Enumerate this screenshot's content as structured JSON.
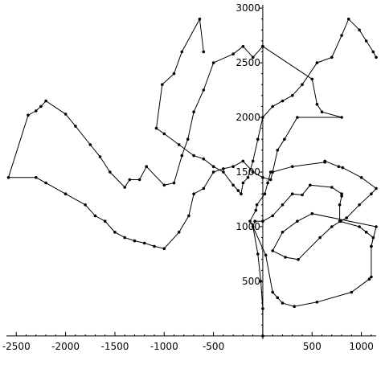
{
  "chart_data": {
    "type": "line",
    "title": "",
    "xlabel": "",
    "ylabel": "",
    "xlim": [
      -2600,
      1150
    ],
    "ylim": [
      -30,
      3030
    ],
    "x_ticks": [
      -2500,
      -2000,
      -1500,
      -1000,
      -500,
      500,
      1000
    ],
    "x_tick_labels": [
      "-2500",
      "-2000",
      "-1500",
      "-1000",
      "-500",
      "500",
      "1000"
    ],
    "y_ticks": [
      500,
      1000,
      1500,
      2000,
      2500,
      3000
    ],
    "y_tick_labels": [
      "500",
      "1000",
      "1500",
      "2000",
      "2500",
      "3000"
    ],
    "minor_ticks": true,
    "grid": false,
    "legend": "none",
    "series": [
      {
        "points": [
          [
            0,
            0
          ],
          [
            0,
            250
          ],
          [
            -20,
            500
          ],
          [
            -50,
            750
          ],
          [
            -100,
            1000
          ],
          [
            -80,
            1050
          ],
          [
            0,
            1050
          ],
          [
            100,
            1100
          ],
          [
            200,
            1200
          ],
          [
            300,
            1300
          ],
          [
            400,
            1290
          ],
          [
            480,
            1380
          ],
          [
            700,
            1360
          ],
          [
            800,
            1300
          ],
          [
            800,
            1280
          ],
          [
            780,
            1200
          ],
          [
            780,
            1050
          ],
          [
            980,
            1000
          ],
          [
            1050,
            950
          ],
          [
            1120,
            900
          ],
          [
            1100,
            820
          ],
          [
            1100,
            540
          ],
          [
            1080,
            520
          ],
          [
            900,
            400
          ],
          [
            550,
            310
          ],
          [
            320,
            270
          ],
          [
            200,
            300
          ],
          [
            150,
            350
          ],
          [
            100,
            400
          ],
          [
            30,
            740
          ],
          [
            -100,
            1000
          ],
          [
            -130,
            1050
          ],
          [
            -70,
            1150
          ],
          [
            -60,
            1200
          ],
          [
            20,
            1300
          ],
          [
            50,
            1400
          ],
          [
            80,
            1500
          ],
          [
            100,
            1500
          ],
          [
            300,
            1550
          ],
          [
            630,
            1590
          ],
          [
            630,
            1600
          ],
          [
            770,
            1550
          ],
          [
            810,
            1540
          ],
          [
            1000,
            1450
          ],
          [
            1150,
            1350
          ],
          [
            1100,
            1300
          ],
          [
            980,
            1200
          ],
          [
            850,
            1080
          ],
          [
            790,
            1050
          ],
          [
            700,
            1000
          ],
          [
            580,
            900
          ],
          [
            360,
            700
          ],
          [
            230,
            720
          ],
          [
            100,
            780
          ],
          [
            200,
            950
          ],
          [
            350,
            1050
          ],
          [
            500,
            1120
          ],
          [
            1150,
            1000
          ],
          [
            1100,
            820
          ]
        ]
      },
      {
        "points": [
          [
            0,
            2650
          ],
          [
            500,
            2350
          ],
          [
            550,
            2120
          ],
          [
            600,
            2050
          ],
          [
            800,
            2000
          ],
          [
            350,
            2000
          ],
          [
            220,
            1800
          ],
          [
            150,
            1700
          ],
          [
            100,
            1500
          ],
          [
            80,
            1430
          ],
          [
            0,
            1450
          ],
          [
            -100,
            1500
          ],
          [
            -200,
            1600
          ],
          [
            -300,
            1550
          ],
          [
            -400,
            1530
          ],
          [
            -500,
            1500
          ],
          [
            -600,
            1350
          ],
          [
            -700,
            1300
          ],
          [
            -750,
            1100
          ],
          [
            -850,
            950
          ],
          [
            -1000,
            800
          ],
          [
            -1100,
            820
          ],
          [
            -1200,
            850
          ],
          [
            -1300,
            870
          ],
          [
            -1400,
            900
          ],
          [
            -1500,
            950
          ],
          [
            -1600,
            1050
          ],
          [
            -1700,
            1100
          ],
          [
            -1800,
            1200
          ],
          [
            -2000,
            1300
          ],
          [
            -2200,
            1400
          ],
          [
            -2300,
            1450
          ],
          [
            -2580,
            1450
          ],
          [
            -2380,
            2020
          ],
          [
            -2300,
            2060
          ],
          [
            -2250,
            2100
          ],
          [
            -2200,
            2150
          ],
          [
            -2000,
            2030
          ],
          [
            -1900,
            1920
          ],
          [
            -1750,
            1750
          ],
          [
            -1650,
            1640
          ],
          [
            -1550,
            1500
          ],
          [
            -1400,
            1360
          ],
          [
            -1350,
            1430
          ],
          [
            -1250,
            1430
          ],
          [
            -1180,
            1550
          ],
          [
            -1000,
            1380
          ],
          [
            -900,
            1400
          ],
          [
            -820,
            1650
          ],
          [
            -760,
            1800
          ],
          [
            -700,
            2050
          ],
          [
            -600,
            2250
          ],
          [
            -500,
            2500
          ],
          [
            -300,
            2580
          ],
          [
            -200,
            2650
          ],
          [
            -100,
            2550
          ],
          [
            0,
            2650
          ]
        ]
      },
      {
        "points": [
          [
            -600,
            2600
          ],
          [
            -640,
            2900
          ],
          [
            -820,
            2600
          ],
          [
            -900,
            2400
          ],
          [
            -1020,
            2300
          ],
          [
            -1080,
            1900
          ],
          [
            -1000,
            1850
          ],
          [
            -850,
            1750
          ],
          [
            -700,
            1650
          ],
          [
            -600,
            1620
          ],
          [
            -500,
            1550
          ],
          [
            -400,
            1500
          ],
          [
            -300,
            1380
          ],
          [
            -250,
            1330
          ],
          [
            -220,
            1300
          ],
          [
            -200,
            1400
          ],
          [
            -150,
            1450
          ],
          [
            -100,
            1600
          ],
          [
            -50,
            1800
          ],
          [
            0,
            2000
          ],
          [
            100,
            2100
          ],
          [
            200,
            2150
          ],
          [
            300,
            2200
          ],
          [
            400,
            2300
          ],
          [
            550,
            2500
          ],
          [
            700,
            2550
          ],
          [
            800,
            2750
          ],
          [
            870,
            2900
          ],
          [
            980,
            2800
          ],
          [
            1050,
            2700
          ],
          [
            1120,
            2600
          ],
          [
            1150,
            2550
          ]
        ]
      }
    ]
  }
}
